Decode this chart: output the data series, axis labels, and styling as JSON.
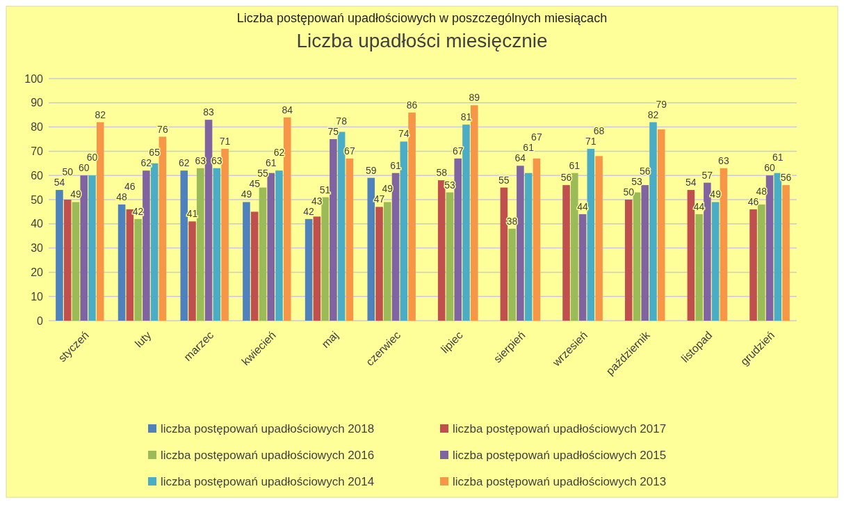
{
  "chart_data": {
    "type": "bar",
    "title": "Liczba upadłości miesięcznie",
    "annotations": [
      "Liczba postępowań upadłościowych w poszczególnych miesiącach"
    ],
    "categories": [
      "styczeń",
      "luty",
      "marzec",
      "kwiecień",
      "maj",
      "czerwiec",
      "lipiec",
      "sierpień",
      "wrzesień",
      "październik",
      "listopad",
      "grudzień"
    ],
    "series": [
      {
        "name": "liczba postępowań upadłościowych 2018",
        "color": "#4f81bd",
        "values": [
          54,
          48,
          62,
          49,
          42,
          59,
          null,
          null,
          null,
          null,
          null,
          null
        ]
      },
      {
        "name": "liczba postępowań upadłościowych 2017",
        "color": "#c0504d",
        "values": [
          50,
          46,
          41,
          45,
          43,
          47,
          58,
          55,
          56,
          50,
          54,
          46
        ]
      },
      {
        "name": "liczba postępowań upadłościowych 2016",
        "color": "#9bbb59",
        "values": [
          49,
          42,
          63,
          55,
          51,
          49,
          53,
          38,
          61,
          53,
          44,
          48
        ]
      },
      {
        "name": "liczba postępowań upadłościowych 2015",
        "color": "#8064a2",
        "values": [
          60,
          62,
          83,
          61,
          75,
          61,
          67,
          64,
          44,
          56,
          57,
          60
        ]
      },
      {
        "name": "liczba postępowań upadłościowych 2014",
        "color": "#4bacc6",
        "values": [
          60,
          65,
          63,
          62,
          78,
          74,
          81,
          61,
          71,
          82,
          49,
          61
        ]
      },
      {
        "name": "liczba postępowań upadłościowych 2013",
        "color": "#f79646",
        "values": [
          82,
          76,
          71,
          84,
          67,
          86,
          89,
          67,
          68,
          79,
          63,
          56
        ]
      }
    ],
    "ylim": [
      0,
      100
    ],
    "yticks": [
      0,
      10,
      20,
      30,
      40,
      50,
      60,
      70,
      80,
      90,
      100
    ],
    "grid": "y",
    "legend": "bottom",
    "data_labels": true
  }
}
